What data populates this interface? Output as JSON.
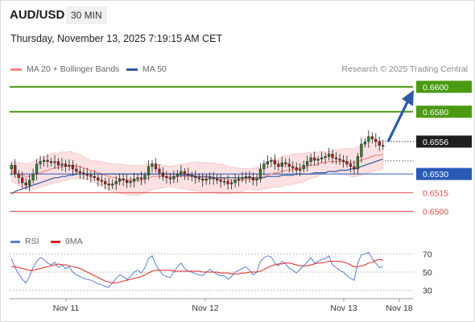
{
  "header": {
    "symbol": "AUD/USD",
    "timeframe": "30 MIN",
    "datetime": "Thursday, November 13, 2025 7:19:15 AM CET",
    "credit": "Research © 2025 Trading Central"
  },
  "colors": {
    "green": "#4a9a12",
    "blue": "#2a5ab8",
    "red": "#e04b4b",
    "ma20": "#f08a8a",
    "ma50": "#2f5aa0",
    "rsi": "#5a7fd6",
    "rsi_ma": "#e02020",
    "dark": "#1e1e1e"
  },
  "chart_data": [
    {
      "type": "candlestick",
      "symbol": "AUD/USD",
      "timeframe": "30 MIN",
      "legend": [
        {
          "name": "MA 20 + Bollinger Bands",
          "color": "#f08a8a"
        },
        {
          "name": "MA 50",
          "color": "#2f5aa0"
        }
      ],
      "x_ticks": [
        "Nov 11",
        "Nov 12",
        "Nov 13",
        "Nov 18"
      ],
      "y_range": [
        0.649,
        0.6607
      ],
      "current_price": "0.6556",
      "pivot": "0.6530",
      "resistance_levels": [
        "0.6600",
        "0.6580"
      ],
      "support_levels": [
        "0.6515",
        "0.6500"
      ],
      "trend_arrow": {
        "from": 0.6556,
        "to": 0.66,
        "direction": "up"
      },
      "close": [
        0.6537,
        0.653,
        0.6527,
        0.6523,
        0.6521,
        0.6525,
        0.653,
        0.6538,
        0.654,
        0.6541,
        0.654,
        0.6539,
        0.654,
        0.6537,
        0.6538,
        0.6536,
        0.6537,
        0.6534,
        0.6532,
        0.6531,
        0.653,
        0.6529,
        0.6528,
        0.6527,
        0.6525,
        0.6524,
        0.6522,
        0.6521,
        0.6522,
        0.6524,
        0.6526,
        0.6525,
        0.6523,
        0.6524,
        0.6526,
        0.6527,
        0.6526,
        0.6529,
        0.6536,
        0.6538,
        0.6534,
        0.6531,
        0.6528,
        0.6527,
        0.6526,
        0.6528,
        0.653,
        0.6532,
        0.653,
        0.6529,
        0.6528,
        0.6527,
        0.6526,
        0.6525,
        0.6526,
        0.6527,
        0.6526,
        0.6525,
        0.6524,
        0.6524,
        0.6522,
        0.6523,
        0.6525,
        0.6526,
        0.6527,
        0.6528,
        0.6527,
        0.6525,
        0.6526,
        0.6534,
        0.6538,
        0.654,
        0.6541,
        0.6538,
        0.6536,
        0.6539,
        0.6538,
        0.6536,
        0.6535,
        0.6533,
        0.6534,
        0.6537,
        0.654,
        0.6543,
        0.6541,
        0.6542,
        0.6543,
        0.6544,
        0.6546,
        0.6543,
        0.6542,
        0.6541,
        0.654,
        0.6538,
        0.6536,
        0.6534,
        0.6544,
        0.6554,
        0.6556,
        0.656,
        0.6558,
        0.6556,
        0.6553,
        0.6553
      ],
      "ma20": [
        0.6532,
        0.6531,
        0.653,
        0.6529,
        0.6528,
        0.6528,
        0.6529,
        0.653,
        0.6531,
        0.6532,
        0.6533,
        0.6534,
        0.6535,
        0.6535,
        0.6536,
        0.6536,
        0.6537,
        0.6537,
        0.6536,
        0.6536,
        0.6535,
        0.6534,
        0.6533,
        0.6532,
        0.6531,
        0.653,
        0.6529,
        0.6528,
        0.6527,
        0.6527,
        0.6526,
        0.6526,
        0.6525,
        0.6525,
        0.6525,
        0.6525,
        0.6525,
        0.6526,
        0.6527,
        0.6528,
        0.6528,
        0.6528,
        0.6528,
        0.6528,
        0.6528,
        0.6528,
        0.6528,
        0.6528,
        0.6528,
        0.6528,
        0.6528,
        0.6528,
        0.6528,
        0.6527,
        0.6527,
        0.6527,
        0.6527,
        0.6526,
        0.6526,
        0.6526,
        0.6525,
        0.6525,
        0.6525,
        0.6525,
        0.6525,
        0.6526,
        0.6526,
        0.6526,
        0.6526,
        0.6527,
        0.6528,
        0.6529,
        0.653,
        0.6531,
        0.6531,
        0.6532,
        0.6533,
        0.6533,
        0.6534,
        0.6534,
        0.6535,
        0.6535,
        0.6536,
        0.6537,
        0.6537,
        0.6538,
        0.6539,
        0.6539,
        0.654,
        0.654,
        0.654,
        0.654,
        0.654,
        0.654,
        0.6539,
        0.6539,
        0.654,
        0.6541,
        0.6542,
        0.6543,
        0.6544,
        0.6545,
        0.6545,
        0.6546
      ],
      "ma50": [
        0.6514,
        0.6516,
        0.6517,
        0.6518,
        0.6519,
        0.652,
        0.6521,
        0.6522,
        0.6523,
        0.6524,
        0.6525,
        0.6526,
        0.6527,
        0.6527,
        0.6528,
        0.6528,
        0.6529,
        0.6529,
        0.653,
        0.653,
        0.653,
        0.653,
        0.653,
        0.653,
        0.653,
        0.653,
        0.653,
        0.653,
        0.653,
        0.653,
        0.653,
        0.653,
        0.653,
        0.653,
        0.653,
        0.653,
        0.653,
        0.653,
        0.653,
        0.653,
        0.653,
        0.653,
        0.653,
        0.653,
        0.653,
        0.653,
        0.653,
        0.6529,
        0.6529,
        0.6529,
        0.6529,
        0.6528,
        0.6528,
        0.6528,
        0.6528,
        0.6528,
        0.6527,
        0.6527,
        0.6527,
        0.6527,
        0.6527,
        0.6527,
        0.6527,
        0.6527,
        0.6527,
        0.6527,
        0.6527,
        0.6527,
        0.6527,
        0.6527,
        0.6527,
        0.6528,
        0.6528,
        0.6528,
        0.6528,
        0.6529,
        0.6529,
        0.6529,
        0.6529,
        0.653,
        0.653,
        0.653,
        0.653,
        0.653,
        0.6531,
        0.6531,
        0.6531,
        0.6531,
        0.6532,
        0.6532,
        0.6532,
        0.6533,
        0.6533,
        0.6533,
        0.6534,
        0.6534,
        0.6535,
        0.6536,
        0.6537,
        0.6538,
        0.6539,
        0.654,
        0.6541,
        0.6542
      ]
    },
    {
      "type": "line",
      "legend": [
        {
          "name": "RSI",
          "color": "#5a7fd6"
        },
        {
          "name": "9MA",
          "color": "#e02020"
        }
      ],
      "y_ticks": [
        "70",
        "50",
        "30"
      ],
      "y_range": [
        25,
        75
      ],
      "rsi": [
        65,
        55,
        48,
        42,
        38,
        45,
        55,
        62,
        66,
        64,
        60,
        58,
        61,
        55,
        58,
        54,
        56,
        50,
        47,
        45,
        43,
        42,
        41,
        39,
        37,
        36,
        34,
        33,
        38,
        43,
        47,
        45,
        42,
        45,
        50,
        52,
        49,
        55,
        65,
        68,
        58,
        52,
        47,
        45,
        44,
        50,
        56,
        60,
        54,
        51,
        50,
        48,
        47,
        46,
        50,
        53,
        50,
        48,
        46,
        46,
        42,
        45,
        50,
        52,
        54,
        56,
        52,
        47,
        50,
        62,
        66,
        68,
        67,
        60,
        57,
        62,
        59,
        54,
        52,
        49,
        53,
        57,
        61,
        66,
        60,
        62,
        64,
        65,
        68,
        58,
        55,
        52,
        50,
        46,
        43,
        41,
        60,
        69,
        70,
        72,
        65,
        60,
        55,
        56
      ],
      "ma": [
        56,
        56,
        55,
        54,
        53,
        52,
        52,
        53,
        54,
        55,
        56,
        57,
        58,
        59,
        58,
        58,
        57,
        56,
        55,
        54,
        52,
        50,
        48,
        46,
        44,
        42,
        40,
        39,
        38,
        38,
        39,
        40,
        41,
        42,
        43,
        44,
        45,
        47,
        49,
        51,
        52,
        52,
        52,
        52,
        52,
        51,
        51,
        51,
        51,
        51,
        51,
        51,
        51,
        50,
        50,
        50,
        50,
        50,
        49,
        49,
        49,
        48,
        48,
        48,
        49,
        49,
        50,
        50,
        50,
        51,
        53,
        55,
        57,
        58,
        59,
        59,
        60,
        60,
        59,
        58,
        57,
        57,
        57,
        58,
        59,
        60,
        60,
        61,
        62,
        62,
        62,
        62,
        61,
        60,
        58,
        56,
        56,
        57,
        58,
        60,
        61,
        63,
        64,
        63
      ]
    }
  ]
}
